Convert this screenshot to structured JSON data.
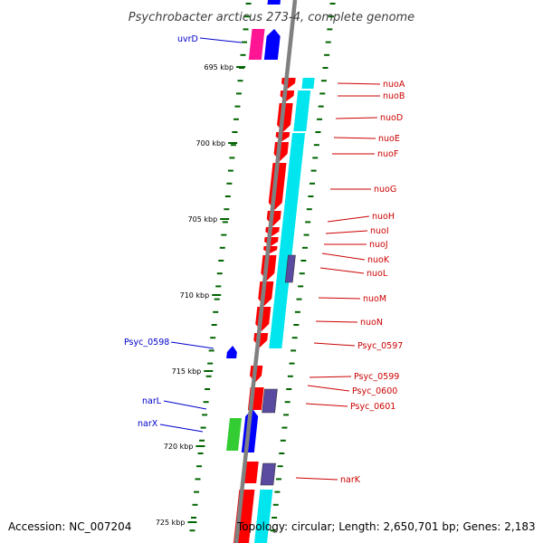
{
  "title": "Psychrobacter arcticus 273-4, complete genome",
  "accession": "Accession: NC_007204",
  "summary": "Topology: circular; Length: 2,650,701 bp; Genes: 2,183",
  "colors": {
    "backbone": "#808080",
    "forward_cds": "#ff0000",
    "reverse_cds": "#0000ff",
    "trna": "#ff1493",
    "rrna": "#33cc33",
    "cog": "#00e5ee",
    "cog_purple": "#5a4aa0",
    "tick": "#006400",
    "label_red": "#cc0000",
    "label_blue": "#0000cc"
  },
  "scale_ticks": [
    "695 kbp",
    "700 kbp",
    "705 kbp",
    "710 kbp",
    "715 kbp",
    "720 kbp",
    "725 kbp"
  ],
  "labels_right": [
    {
      "name": "nuoA"
    },
    {
      "name": "nuoB"
    },
    {
      "name": "nuoD"
    },
    {
      "name": "nuoE"
    },
    {
      "name": "nuoF"
    },
    {
      "name": "nuoG"
    },
    {
      "name": "nuoH"
    },
    {
      "name": "nuoI"
    },
    {
      "name": "nuoJ"
    },
    {
      "name": "nuoK"
    },
    {
      "name": "nuoL"
    },
    {
      "name": "nuoM"
    },
    {
      "name": "nuoN"
    },
    {
      "name": "Psyc_0597"
    },
    {
      "name": "Psyc_0599"
    },
    {
      "name": "Psyc_0600"
    },
    {
      "name": "Psyc_0601"
    },
    {
      "name": "narK"
    }
  ],
  "labels_left": [
    {
      "name": "uvrD"
    },
    {
      "name": "Psyc_0598"
    },
    {
      "name": "narL"
    },
    {
      "name": "narX"
    }
  ]
}
